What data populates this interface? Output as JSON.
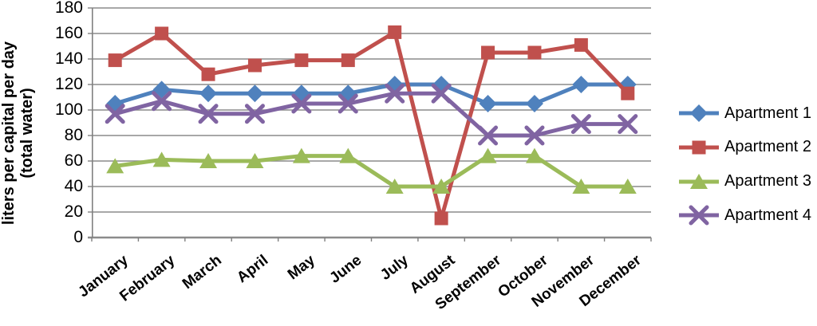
{
  "chart_data": {
    "type": "line",
    "title": "",
    "ylabel_line1": "liters per capital per day",
    "ylabel_line2": "(total water)",
    "xlabel": "",
    "ylim": [
      0,
      180
    ],
    "ytick_step": 20,
    "yticks": [
      180,
      160,
      140,
      120,
      100,
      80,
      60,
      40,
      20,
      0
    ],
    "categories": [
      "January",
      "February",
      "March",
      "April",
      "May",
      "June",
      "July",
      "August",
      "September",
      "October",
      "November",
      "December"
    ],
    "series": [
      {
        "name": "Apartment 1",
        "color": "#4F81BD",
        "marker": "diamond",
        "values": [
          105,
          116,
          113,
          113,
          113,
          113,
          120,
          120,
          105,
          105,
          120,
          120
        ]
      },
      {
        "name": "Apartment 2",
        "color": "#C0504D",
        "marker": "square",
        "values": [
          139,
          160,
          128,
          135,
          139,
          139,
          161,
          15,
          145,
          145,
          151,
          113
        ]
      },
      {
        "name": "Apartment 3",
        "color": "#9BBB59",
        "marker": "triangle",
        "values": [
          56,
          61,
          60,
          60,
          64,
          64,
          40,
          40,
          64,
          64,
          40,
          40
        ]
      },
      {
        "name": "Apartment 4",
        "color": "#8064A2",
        "marker": "x",
        "values": [
          97,
          107,
          97,
          97,
          105,
          105,
          113,
          113,
          80,
          80,
          89,
          89
        ]
      }
    ],
    "grid": true,
    "legend_position": "right",
    "gridline_color": "#8C8C8C",
    "axis_line_color": "#808080",
    "text_color": "#000000"
  }
}
